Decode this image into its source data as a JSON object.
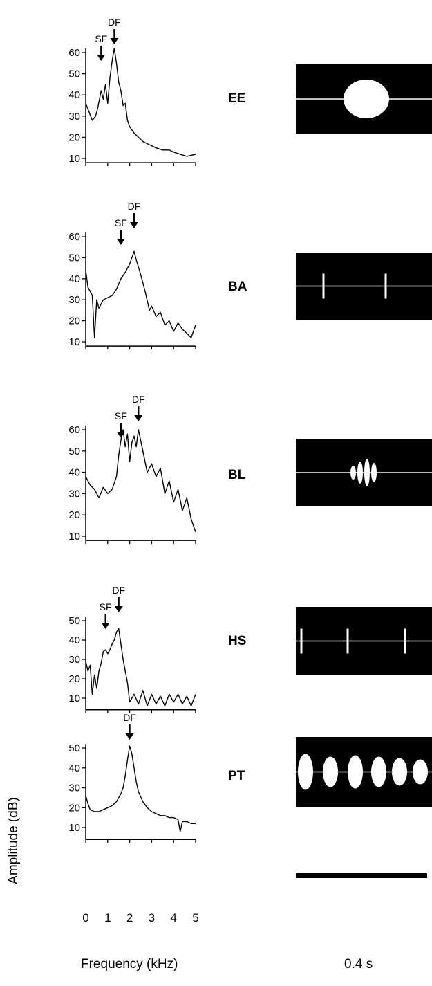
{
  "figure": {
    "y_axis_label": "Amplitude (dB)",
    "x_axis_label": "Frequency (kHz)",
    "scale_bar_label": "0.4 s",
    "x_ticks": [
      "0",
      "1",
      "2",
      "3",
      "4",
      "5"
    ],
    "colors": {
      "background": "#ffffff",
      "line": "#000000",
      "oscillogram_bg": "#000000",
      "oscillogram_fg": "#ffffff"
    }
  },
  "chart_data": [
    {
      "type": "line",
      "species": "EE",
      "xlim": [
        0,
        5
      ],
      "yticks": [
        10,
        20,
        30,
        40,
        50,
        60
      ],
      "ylim": [
        8,
        62
      ],
      "annotations": [
        {
          "label": "SF",
          "x": 0.7
        },
        {
          "label": "DF",
          "x": 1.3
        }
      ],
      "x": [
        0,
        0.15,
        0.3,
        0.45,
        0.55,
        0.7,
        0.8,
        0.9,
        1.0,
        1.1,
        1.2,
        1.3,
        1.4,
        1.5,
        1.6,
        1.7,
        1.8,
        1.9,
        2.0,
        2.2,
        2.4,
        2.6,
        2.8,
        3.0,
        3.2,
        3.5,
        3.8,
        4.0,
        4.3,
        4.6,
        5.0
      ],
      "y": [
        36,
        32,
        28,
        30,
        34,
        42,
        38,
        45,
        36,
        48,
        56,
        62,
        55,
        46,
        42,
        35,
        36,
        28,
        25,
        22,
        20,
        18,
        17,
        16,
        15,
        14,
        14,
        13,
        12,
        11,
        12
      ]
    },
    {
      "type": "line",
      "species": "BA",
      "xlim": [
        0,
        5
      ],
      "yticks": [
        10,
        20,
        30,
        40,
        50,
        60
      ],
      "ylim": [
        8,
        62
      ],
      "annotations": [
        {
          "label": "SF",
          "x": 1.6
        },
        {
          "label": "DF",
          "x": 2.2
        }
      ],
      "x": [
        0,
        0.1,
        0.3,
        0.4,
        0.5,
        0.6,
        0.8,
        1.0,
        1.2,
        1.4,
        1.6,
        1.8,
        2.0,
        2.1,
        2.2,
        2.3,
        2.5,
        2.7,
        2.9,
        3.0,
        3.2,
        3.4,
        3.6,
        3.8,
        4.0,
        4.2,
        4.4,
        4.6,
        4.8,
        5.0
      ],
      "y": [
        44,
        36,
        32,
        12,
        30,
        26,
        30,
        31,
        32,
        35,
        40,
        43,
        47,
        50,
        53,
        49,
        42,
        34,
        25,
        27,
        22,
        24,
        18,
        20,
        15,
        19,
        16,
        14,
        12,
        18
      ]
    },
    {
      "type": "line",
      "species": "BL",
      "xlim": [
        0,
        5
      ],
      "yticks": [
        10,
        20,
        30,
        40,
        50,
        60
      ],
      "ylim": [
        8,
        62
      ],
      "annotations": [
        {
          "label": "SF",
          "x": 1.6
        },
        {
          "label": "DF",
          "x": 2.4
        }
      ],
      "x": [
        0,
        0.2,
        0.4,
        0.6,
        0.8,
        1.0,
        1.2,
        1.4,
        1.5,
        1.6,
        1.7,
        1.8,
        1.9,
        2.0,
        2.1,
        2.2,
        2.3,
        2.4,
        2.6,
        2.8,
        3.0,
        3.2,
        3.4,
        3.6,
        3.8,
        4.0,
        4.2,
        4.4,
        4.6,
        4.8,
        5.0
      ],
      "y": [
        38,
        34,
        32,
        28,
        33,
        30,
        32,
        38,
        48,
        55,
        60,
        52,
        58,
        45,
        54,
        57,
        52,
        60,
        50,
        40,
        44,
        38,
        42,
        30,
        36,
        26,
        32,
        22,
        28,
        18,
        12
      ]
    },
    {
      "type": "line",
      "species": "HS",
      "xlim": [
        0,
        5
      ],
      "yticks": [
        10,
        20,
        30,
        40,
        50
      ],
      "ylim": [
        4,
        52
      ],
      "annotations": [
        {
          "label": "SF",
          "x": 0.9
        },
        {
          "label": "DF",
          "x": 1.5
        }
      ],
      "x": [
        0,
        0.1,
        0.2,
        0.3,
        0.4,
        0.5,
        0.6,
        0.7,
        0.8,
        0.9,
        1.0,
        1.1,
        1.2,
        1.3,
        1.4,
        1.5,
        1.6,
        1.7,
        1.8,
        1.9,
        2.0,
        2.2,
        2.4,
        2.6,
        2.8,
        3.0,
        3.2,
        3.4,
        3.6,
        3.8,
        4.0,
        4.2,
        4.4,
        4.6,
        4.8,
        5.0
      ],
      "y": [
        29,
        24,
        27,
        12,
        22,
        15,
        24,
        28,
        34,
        35,
        33,
        35,
        38,
        40,
        44,
        46,
        38,
        30,
        24,
        18,
        8,
        12,
        7,
        14,
        6,
        12,
        7,
        11,
        6,
        12,
        8,
        12,
        7,
        11,
        6,
        12
      ]
    },
    {
      "type": "line",
      "species": "PT",
      "xlim": [
        0,
        5
      ],
      "yticks": [
        10,
        20,
        30,
        40,
        50
      ],
      "ylim": [
        4,
        52
      ],
      "annotations": [
        {
          "label": "DF",
          "x": 2.0
        }
      ],
      "x": [
        0,
        0.1,
        0.2,
        0.4,
        0.6,
        0.8,
        1.0,
        1.2,
        1.4,
        1.6,
        1.7,
        1.8,
        1.9,
        2.0,
        2.1,
        2.2,
        2.3,
        2.4,
        2.6,
        2.8,
        3.0,
        3.2,
        3.4,
        3.6,
        3.8,
        4.0,
        4.2,
        4.3,
        4.4,
        4.6,
        4.8,
        5.0
      ],
      "y": [
        26,
        22,
        19,
        18,
        18,
        19,
        20,
        21,
        23,
        27,
        30,
        36,
        44,
        51,
        47,
        40,
        33,
        28,
        23,
        20,
        18,
        17,
        16,
        16,
        15,
        15,
        14,
        8,
        13,
        13,
        12,
        12
      ]
    }
  ],
  "oscillograms": [
    {
      "species": "EE",
      "pattern": "single-note"
    },
    {
      "species": "BA",
      "pattern": "sparse-clicks"
    },
    {
      "species": "BL",
      "pattern": "pulsed-burst"
    },
    {
      "species": "HS",
      "pattern": "sparse-clicks"
    },
    {
      "species": "PT",
      "pattern": "pulse-train"
    }
  ]
}
